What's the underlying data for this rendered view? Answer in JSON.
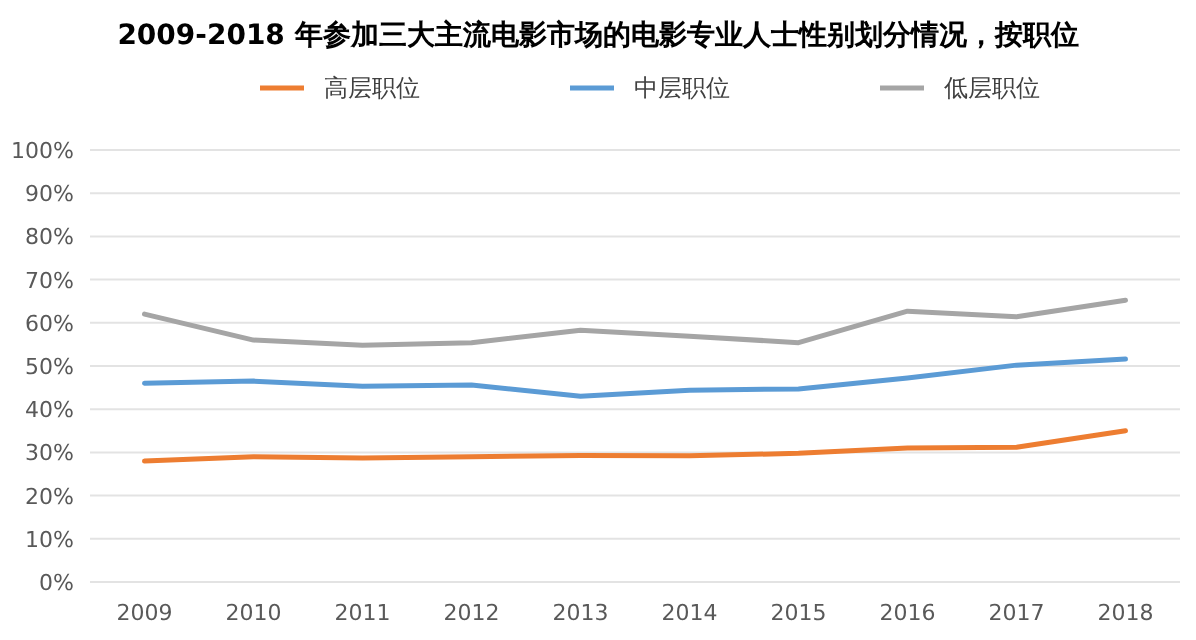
{
  "chart_data": {
    "type": "line",
    "title": "2009-2018 年参加三大主流电影市场的电影专业人士性别划分情况，按职位",
    "categories": [
      "2009",
      "2010",
      "2011",
      "2012",
      "2013",
      "2014",
      "2015",
      "2016",
      "2017",
      "2018"
    ],
    "series": [
      {
        "name": "高层职位",
        "color": "#ed7d31",
        "values": [
          28,
          29,
          28.7,
          29,
          29.3,
          29.2,
          29.8,
          31,
          31.2,
          35
        ]
      },
      {
        "name": "中层职位",
        "color": "#5b9bd5",
        "values": [
          46,
          46.5,
          45.3,
          45.6,
          43,
          44.4,
          44.7,
          47.2,
          50.2,
          51.6
        ]
      },
      {
        "name": "低层职位",
        "color": "#a5a5a5",
        "values": [
          62,
          56,
          54.8,
          55.4,
          58.3,
          56.9,
          55.4,
          62.7,
          61.4,
          65.2
        ]
      }
    ],
    "ylim": [
      0,
      100
    ],
    "yticks": [
      {
        "value": 0,
        "label": "0%"
      },
      {
        "value": 10,
        "label": "10%"
      },
      {
        "value": 20,
        "label": "20%"
      },
      {
        "value": 30,
        "label": "30%"
      },
      {
        "value": 40,
        "label": "40%"
      },
      {
        "value": 50,
        "label": "50%"
      },
      {
        "value": 60,
        "label": "60%"
      },
      {
        "value": 70,
        "label": "70%"
      },
      {
        "value": 80,
        "label": "80%"
      },
      {
        "value": 90,
        "label": "90%"
      },
      {
        "value": 100,
        "label": "100%"
      }
    ],
    "grid": "y",
    "legend": "top",
    "marker": "none",
    "line_style": "solid"
  }
}
